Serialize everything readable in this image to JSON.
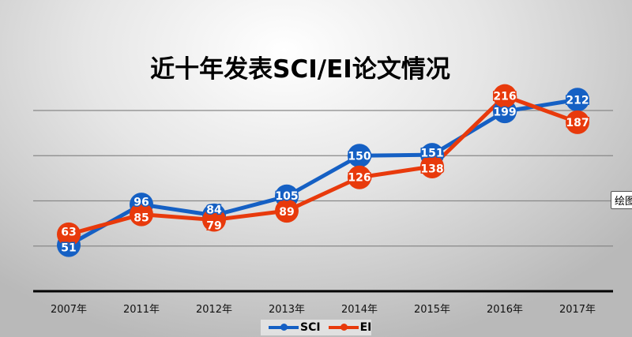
{
  "chart_data": {
    "type": "line",
    "title": "近十年发表SCI/EI论文情况",
    "categories": [
      "2007年",
      "2011年",
      "2012年",
      "2013年",
      "2014年",
      "2015年",
      "2016年",
      "2017年"
    ],
    "series": [
      {
        "name": "SCI",
        "color": "#1560c4",
        "values": [
          51,
          96,
          84,
          105,
          150,
          151,
          199,
          212
        ]
      },
      {
        "name": "EI",
        "color": "#e83a0c",
        "values": [
          63,
          85,
          79,
          89,
          126,
          138,
          216,
          187
        ]
      }
    ],
    "ylim": [
      0,
      250
    ],
    "yticks": [
      0,
      50,
      100,
      150,
      200
    ],
    "grid": true,
    "data_labels": true,
    "legend_placement": "bottom"
  },
  "tooltip": "绘图区"
}
